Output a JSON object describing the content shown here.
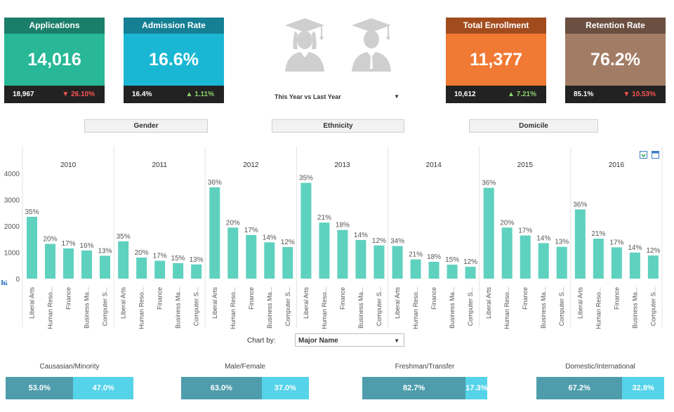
{
  "kpis": {
    "applications": {
      "title": "Applications",
      "value": "14,016",
      "prev": "18,967",
      "change": "26.10%",
      "direction": "down",
      "color": "#28b898",
      "header": "#1b7e6a"
    },
    "admission": {
      "title": "Admission Rate",
      "value": "16.6%",
      "prev": "16.4%",
      "change": "1.11%",
      "direction": "up",
      "color": "#1ab7d4",
      "header": "#157f94"
    },
    "enrollment": {
      "title": "Total Enrollment",
      "value": "11,377",
      "prev": "10,612",
      "change": "7.21%",
      "direction": "up",
      "color": "#f07934",
      "header": "#a24c1e"
    },
    "retention": {
      "title": "Retention Rate",
      "value": "76.2%",
      "prev": "85.1%",
      "change": "10.53%",
      "direction": "down",
      "color": "#a37c66",
      "header": "#6b4f40"
    }
  },
  "period_select": {
    "value": "This Year vs Last Year",
    "arrow": "▼"
  },
  "arrows": {
    "down": "▼",
    "up": "▲"
  },
  "filters": {
    "gender": "Gender",
    "ethnicity": "Ethnicity",
    "domicile": "Domicile"
  },
  "chart_by": {
    "label": "Chart by:",
    "value": "Major Name",
    "arrow": "▼"
  },
  "splits": [
    {
      "title": "Causasian/Minority",
      "a": "53.0%",
      "b": "47.0%",
      "a_frac": 0.53
    },
    {
      "title": "Male/Female",
      "a": "63.0%",
      "b": "37.0%",
      "a_frac": 0.63
    },
    {
      "title": "Freshman/Transfer",
      "a": "82.7%",
      "b": "17.3%",
      "a_frac": 0.827
    },
    {
      "title": "Domestic/International",
      "a": "67.2%",
      "b": "32.8%",
      "a_frac": 0.672
    }
  ],
  "chart_data": {
    "type": "bar",
    "y_ticks": [
      "4000",
      "3000",
      "2000",
      "1000",
      "0"
    ],
    "ylim": [
      0,
      4000
    ],
    "bar_color": "#5fd1bf",
    "categories": [
      "Liberal Arts",
      "Human Reso...",
      "Finance",
      "Business Ma...",
      "Computer S..."
    ],
    "panels": [
      {
        "year": "2010",
        "values": [
          2350,
          1320,
          1150,
          1070,
          870
        ],
        "labels": [
          "35%",
          "20%",
          "17%",
          "16%",
          "13%"
        ]
      },
      {
        "year": "2011",
        "values": [
          1420,
          800,
          680,
          590,
          540
        ],
        "labels": [
          "35%",
          "20%",
          "17%",
          "15%",
          "13%"
        ]
      },
      {
        "year": "2012",
        "values": [
          3470,
          1940,
          1660,
          1380,
          1200
        ],
        "labels": [
          "36%",
          "20%",
          "17%",
          "14%",
          "12%"
        ]
      },
      {
        "year": "2013",
        "values": [
          3640,
          2130,
          1850,
          1470,
          1260
        ],
        "labels": [
          "35%",
          "21%",
          "18%",
          "14%",
          "12%"
        ]
      },
      {
        "year": "2014",
        "values": [
          1240,
          730,
          640,
          530,
          450
        ],
        "labels": [
          "34%",
          "21%",
          "18%",
          "15%",
          "12%"
        ]
      },
      {
        "year": "2015",
        "values": [
          3450,
          1940,
          1640,
          1350,
          1210
        ],
        "labels": [
          "36%",
          "20%",
          "17%",
          "14%",
          "13%"
        ]
      },
      {
        "year": "2016",
        "values": [
          2630,
          1520,
          1190,
          990,
          880
        ],
        "labels": [
          "36%",
          "21%",
          "17%",
          "14%",
          "12%"
        ]
      }
    ]
  }
}
